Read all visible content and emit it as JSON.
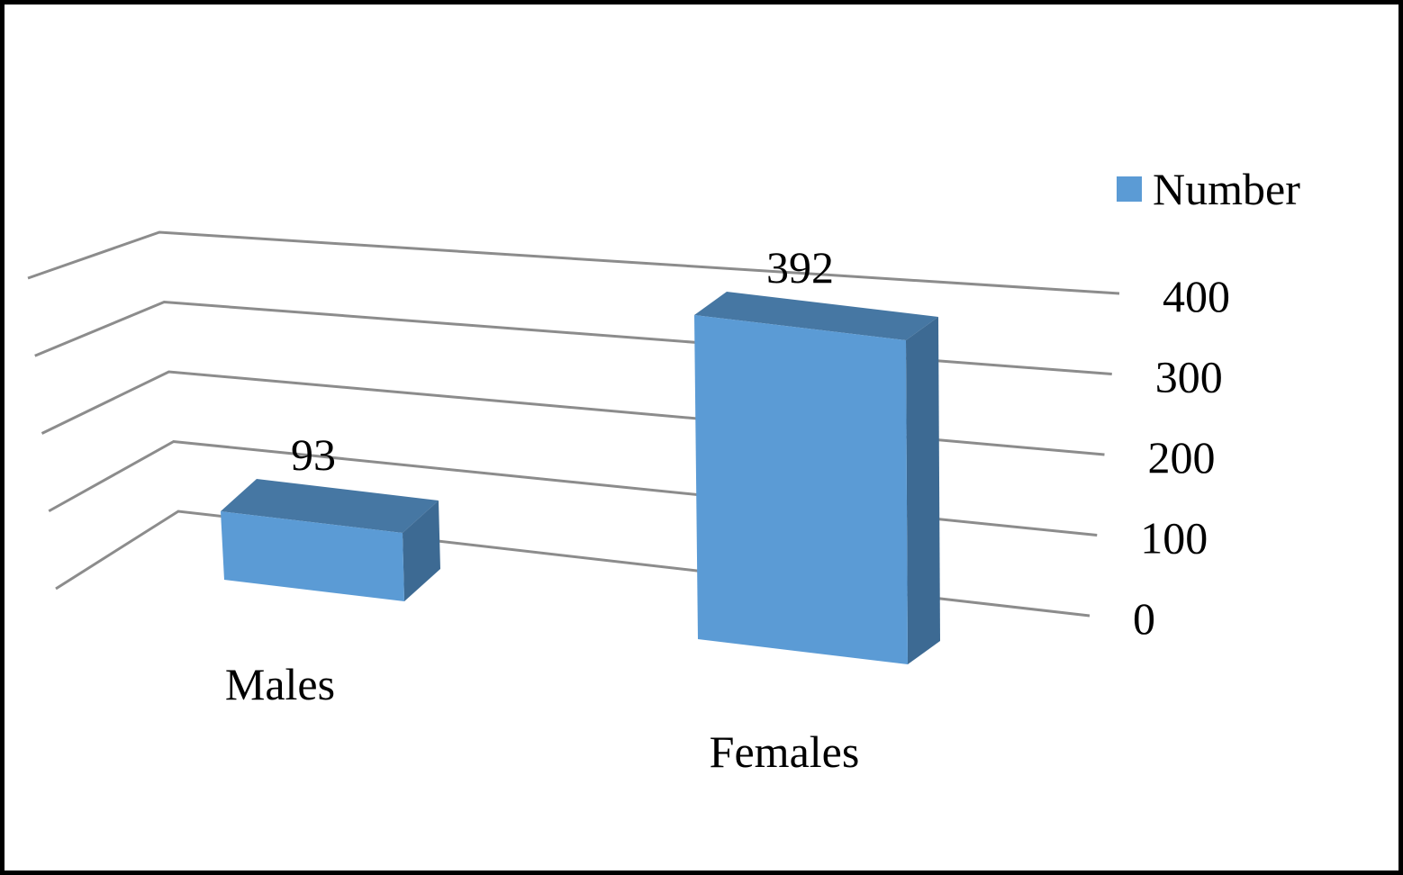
{
  "chart_data": {
    "type": "bar",
    "style": "3d-column",
    "categories": [
      "Males",
      "Females"
    ],
    "series": [
      {
        "name": "Number",
        "values": [
          93,
          392
        ]
      }
    ],
    "y_ticks": [
      0,
      100,
      200,
      300,
      400
    ],
    "ylim": [
      0,
      400
    ],
    "data_labels": true,
    "grid": true,
    "legend": "top-right"
  },
  "colors": {
    "bar_front": "#5b9bd5",
    "bar_top": "#4677a3",
    "bar_side": "#3d6a93",
    "grid": "#8c8c8c",
    "frame": "#000000"
  }
}
